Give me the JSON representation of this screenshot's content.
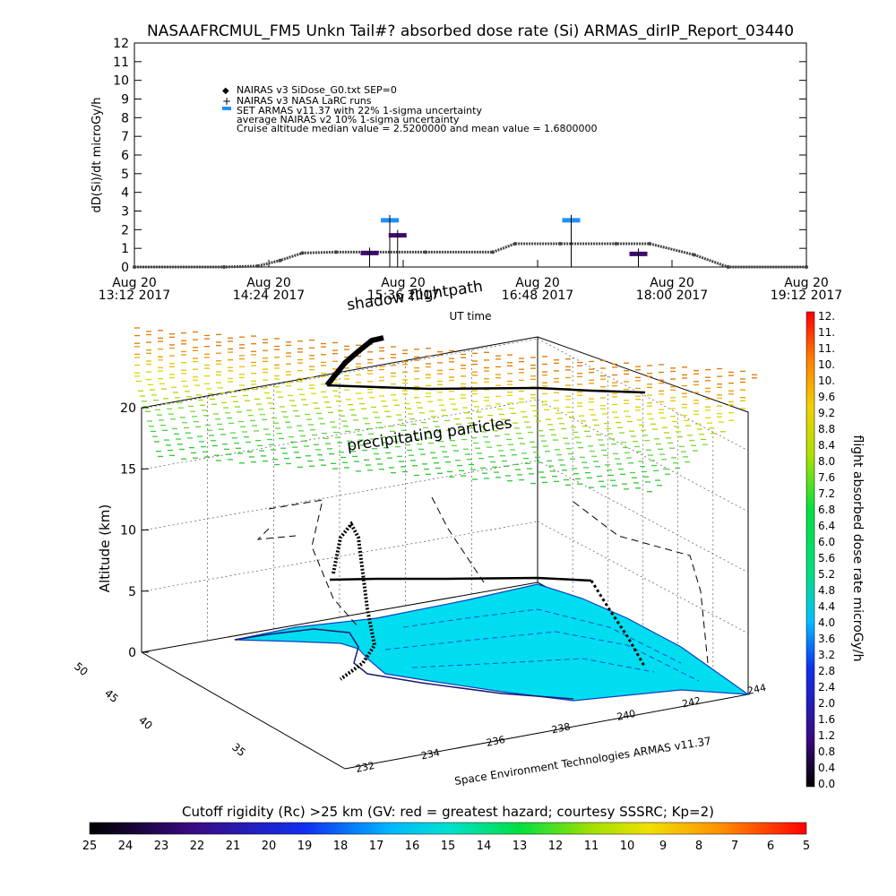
{
  "title": "NASAAFRCMUL_FM5 Unkn Tail#? absorbed dose rate (Si) ARMAS_dirIP_Report_03440",
  "colors": {
    "sigma_marker": "#1e90ff",
    "dark_purple": "#3d0a6e",
    "ocean": "#00ddf0",
    "flightpath": "#000000"
  },
  "chart_data": [
    {
      "type": "line",
      "ylabel": "dD(Si)/dt microGy/h",
      "ylim": [
        0,
        12
      ],
      "yticks": [
        0,
        1,
        2,
        3,
        4,
        5,
        6,
        7,
        8,
        9,
        10,
        11,
        12
      ],
      "x_tick_labels": [
        [
          "Aug 20",
          "13:12 2017"
        ],
        [
          "Aug 20",
          "14:24 2017"
        ],
        [
          "Aug 20",
          "15:36 2017"
        ],
        [
          "Aug 20",
          "16:48 2017"
        ],
        [
          "Aug 20",
          "18:00 2017"
        ],
        [
          "Aug 20",
          "19:12 2017"
        ]
      ],
      "xlabel": "UT time",
      "legend": [
        "NAIRAS v3 SiDose_G0.txt SEP=0",
        "NAIRAS v3 NASA LaRC runs",
        "SET ARMAS v11.37 with 22% 1-sigma uncertainty",
        "average NAIRAS v2 10% 1-sigma uncertainty",
        "Cruise altitude median value = 2.5200000 and mean value = 1.6800000"
      ],
      "series": [
        {
          "name": "NAIRAS v3 SiDose_G0.txt SEP=0",
          "x_hours": [
            13.2,
            14.0,
            14.3,
            14.5,
            14.7,
            15.0,
            15.8,
            16.4,
            16.6,
            17.0,
            17.5,
            17.8,
            18.2,
            18.5,
            19.2
          ],
          "values": [
            0,
            0,
            0.05,
            0.35,
            0.75,
            0.8,
            0.8,
            0.8,
            1.25,
            1.25,
            1.25,
            1.25,
            0.65,
            0,
            0
          ]
        },
        {
          "name": "SET ARMAS v11.37 with 22% 1-sigma uncertainty",
          "points": [
            {
              "x_hours": 15.48,
              "y": 2.5,
              "color": "#1e90ff"
            },
            {
              "x_hours": 15.55,
              "y": 1.7,
              "color": "#3d0a6e"
            },
            {
              "x_hours": 15.3,
              "y": 0.75,
              "color": "#3d0a6e"
            },
            {
              "x_hours": 17.1,
              "y": 2.5,
              "color": "#1e90ff"
            },
            {
              "x_hours": 17.7,
              "y": 0.7,
              "color": "#3d0a6e"
            }
          ]
        }
      ]
    },
    {
      "type": "scatter",
      "annotations": [
        "shadow flightpath",
        "precipitating particles"
      ],
      "zlabel": "Altitude (km)",
      "z_ticks": [
        0,
        5,
        10,
        15,
        20
      ],
      "lat_ticks": [
        35,
        40,
        45,
        50
      ],
      "lon_ticks": [
        232,
        234,
        236,
        238,
        240,
        242,
        244
      ],
      "credit": "Space Environment Technologies ARMAS v11.37",
      "dose_colorbar": {
        "label": "flight absorbed dose rate microGy/h",
        "ticks": [
          "0.0",
          "0.4",
          "0.8",
          "1.2",
          "1.6",
          "2.0",
          "2.4",
          "2.8",
          "3.2",
          "3.6",
          "4.0",
          "4.4",
          "4.8",
          "5.2",
          "5.6",
          "6.0",
          "6.4",
          "6.8",
          "7.2",
          "7.6",
          "8.0",
          "8.4",
          "8.8",
          "9.2",
          "9.6",
          "10.",
          "10.",
          "11.",
          "11.",
          "12."
        ]
      }
    },
    {
      "type": "heatmap",
      "title": "Cutoff rigidity (Rc) >25 km (GV: red = greatest hazard; courtesy SSSRC; Kp=2)",
      "ticks": [
        "25",
        "24",
        "23",
        "22",
        "21",
        "20",
        "19",
        "18",
        "17",
        "16",
        "15",
        "14",
        "13",
        "12",
        "11",
        "10",
        "9",
        "8",
        "7",
        "6",
        "5"
      ]
    }
  ]
}
